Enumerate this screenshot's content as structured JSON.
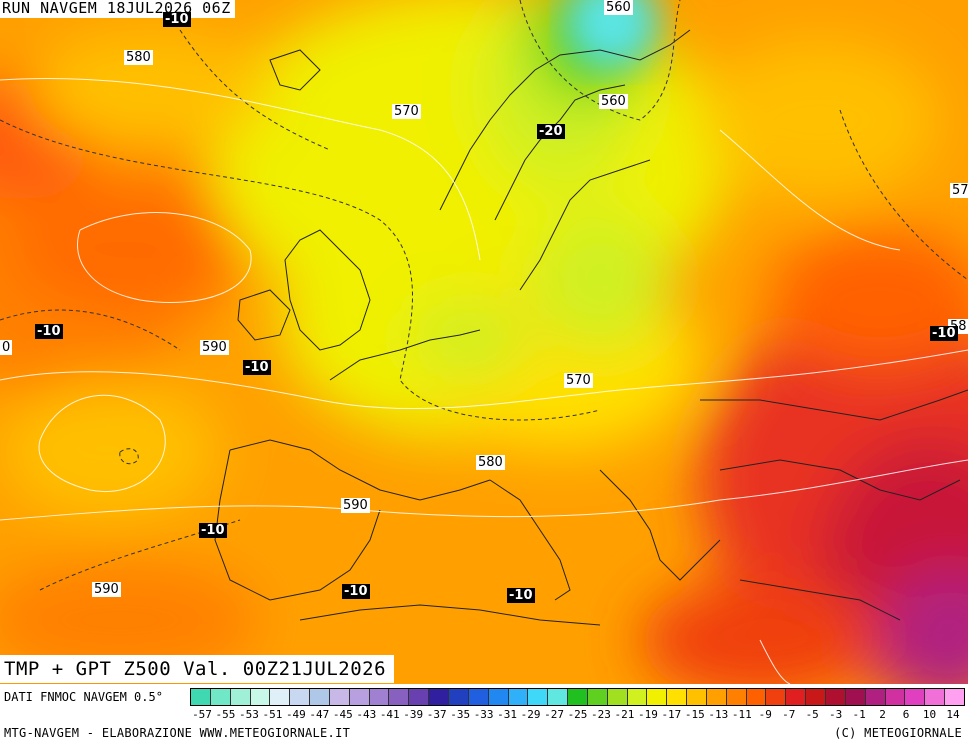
{
  "header": {
    "run": "RUN NAVGEM 18JUL2026 06Z"
  },
  "title": "TMP + GPT Z500 Val. 00Z21JUL2026",
  "footer": {
    "dati": "DATI FNMOC NAVGEM 0.5°",
    "left": "MTG-NAVGEM - ELABORAZIONE WWW.METEOGIORNALE.IT",
    "right": "(C) METEOGIORNALE"
  },
  "colorbar": {
    "labels": [
      "-57",
      "-55",
      "-53",
      "-51",
      "-49",
      "-47",
      "-45",
      "-43",
      "-41",
      "-39",
      "-37",
      "-35",
      "-33",
      "-31",
      "-29",
      "-27",
      "-25",
      "-23",
      "-21",
      "-19",
      "-17",
      "-15",
      "-13",
      "-11",
      "-9",
      "-7",
      "-5",
      "-3",
      "-1",
      "2",
      "6",
      "10",
      "14"
    ],
    "colors": [
      "#40d8b0",
      "#70e8c8",
      "#a0f0d8",
      "#c8f8e8",
      "#e0f0f8",
      "#c8d8f0",
      "#b0c8e8",
      "#c8b8e8",
      "#b8a0e0",
      "#a080d0",
      "#8860c0",
      "#6840b0",
      "#3020a0",
      "#2040c0",
      "#2060e0",
      "#2088f0",
      "#30b0f8",
      "#40d8f8",
      "#60e8e0",
      "#20c020",
      "#60d020",
      "#a0e020",
      "#d0f020",
      "#f0f000",
      "#ffe000",
      "#ffc000",
      "#ffa000",
      "#ff8000",
      "#ff6000",
      "#f04010",
      "#e02020",
      "#c81818",
      "#b01030",
      "#a01050",
      "#b02080",
      "#d030a0",
      "#e040c0",
      "#f070d8",
      "#ffa0f0"
    ]
  },
  "map_labels": {
    "z500": [
      {
        "text": "580"
      },
      {
        "text": "570"
      },
      {
        "text": "560"
      },
      {
        "text": "590"
      },
      {
        "text": "570"
      },
      {
        "text": "580"
      },
      {
        "text": "590"
      },
      {
        "text": "590"
      },
      {
        "text": "57"
      },
      {
        "text": "58"
      },
      {
        "text": "560"
      },
      {
        "text": "0"
      }
    ],
    "temp": [
      {
        "text": "-10"
      },
      {
        "text": "-20"
      },
      {
        "text": "-10"
      },
      {
        "text": "-10"
      },
      {
        "text": "-10"
      },
      {
        "text": "-10"
      },
      {
        "text": "-10"
      },
      {
        "text": "-10"
      }
    ]
  },
  "colors": {
    "field_yellow": "#f0f000",
    "field_orange": "#ffa000",
    "field_red": "#e02020",
    "field_magenta": "#b02080",
    "field_green": "#60d020",
    "field_cyan": "#40d8f8"
  }
}
